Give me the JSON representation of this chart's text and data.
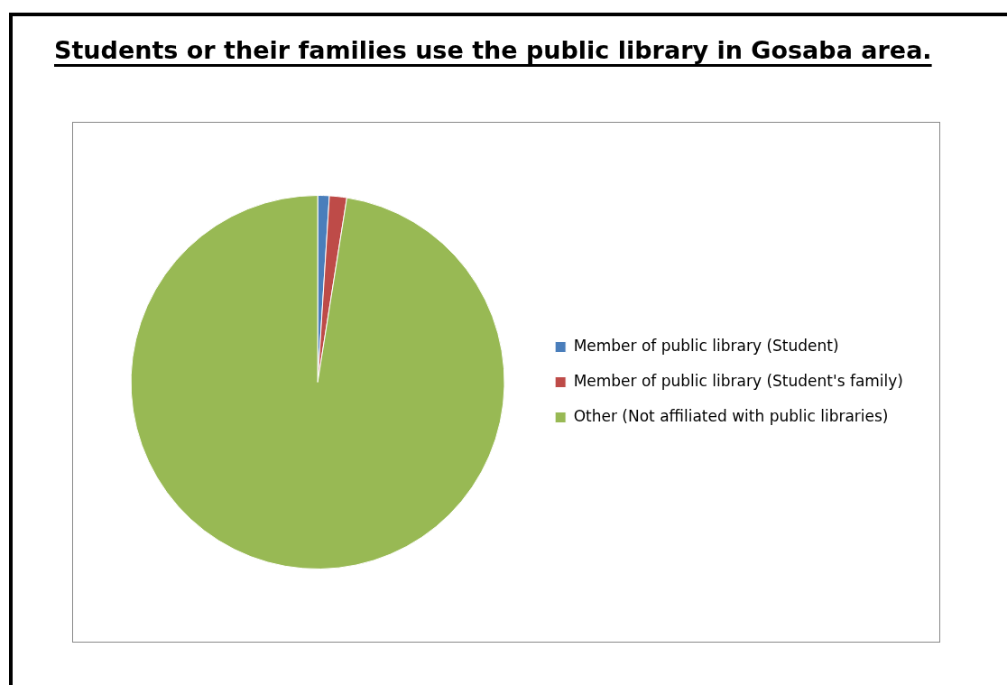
{
  "chart_data": {
    "type": "pie",
    "title": "Students or their families use the public library in Gosaba area.",
    "categories": [
      "Member of public library (Student)",
      "Member of public library (Student's family)",
      "Other (Not affiliated with public libraries)"
    ],
    "values": [
      1,
      1.5,
      97.5
    ],
    "colors": [
      "#4a7ebb",
      "#be4b48",
      "#98b954"
    ],
    "legend": "right"
  }
}
